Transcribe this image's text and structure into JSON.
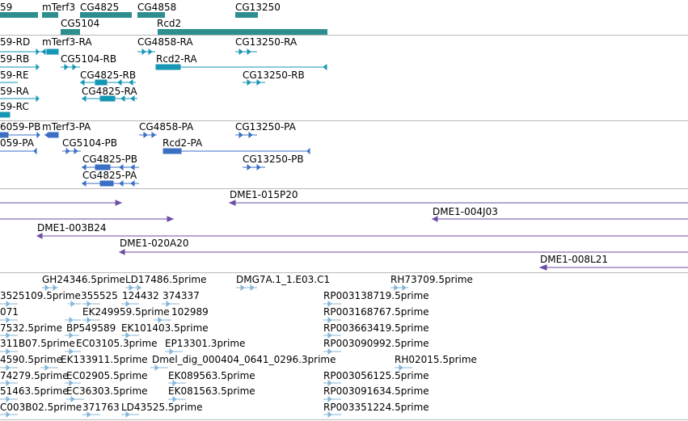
{
  "colors": {
    "gene": "#2e8e8e",
    "mrna_flybase": "#1596b4",
    "mrna_refseq": "#3a6fc4",
    "bac": "#6b4ea2",
    "est": "#87b6d6",
    "separator": "#b8b8b8",
    "background": "#ffffff",
    "text": "#000000"
  },
  "tracks": {
    "genes": {
      "labels": [
        "59",
        "mTerf3",
        "CG4825",
        "CG4858",
        "CG13250",
        "CG5104",
        "Rcd2"
      ]
    },
    "transcripts_a": {
      "labels": [
        "59-RD",
        "mTerf3-RA",
        "CG4858-RA",
        "CG13250-RA",
        "59-RB",
        "CG5104-RB",
        "Rcd2-RA",
        "59-RE",
        "CG4825-RB",
        "CG13250-RB",
        "59-RA",
        "CG4825-RA",
        "59-RC"
      ]
    },
    "transcripts_b": {
      "labels": [
        "6059-PB",
        "mTerf3-PA",
        "CG4858-PA",
        "CG13250-PA",
        "059-PA",
        "CG5104-PB",
        "Rcd2-PA",
        "CG4825-PB",
        "CG13250-PB",
        "CG4825-PA"
      ]
    },
    "bac_clones": {
      "labels": [
        "DME1-015P20",
        "DME1-004J03",
        "DME1-003B24",
        "DME1-020A20",
        "DME1-008L21"
      ]
    },
    "ests": {
      "labels": [
        "GH24346.5prime",
        "LD17486.5prime",
        "DMG7A.1_1.E03.C1",
        "RH73709.5prime",
        "3525109.5prime",
        "355525",
        "124432",
        "374337",
        "RP003138719.5prime",
        "071",
        "EK249959.5prime",
        "102989",
        "RP003168767.5prime",
        "7532.5prime",
        "BP549589",
        "EK101403.5prime",
        "RP003663419.5prime",
        "311B07.5prime",
        "EC03105.3prime",
        "EP13301.3prime",
        "RP003090992.5prime",
        "4590.5prime",
        "EK133911.5prime",
        "Dmel_dig_000404_0641_0296.3prime",
        "RH02015.5prime",
        "74279.5prime",
        "EC02905.5prime",
        "EK089563.5prime",
        "RP003056125.5prime",
        "51463.5prime",
        "EC36303.5prime",
        "EK081563.5prime",
        "RP003091634.5prime",
        "C003B02.5prime",
        "371763",
        "LD43525.5prime",
        "RP003351224.5prime"
      ]
    }
  }
}
